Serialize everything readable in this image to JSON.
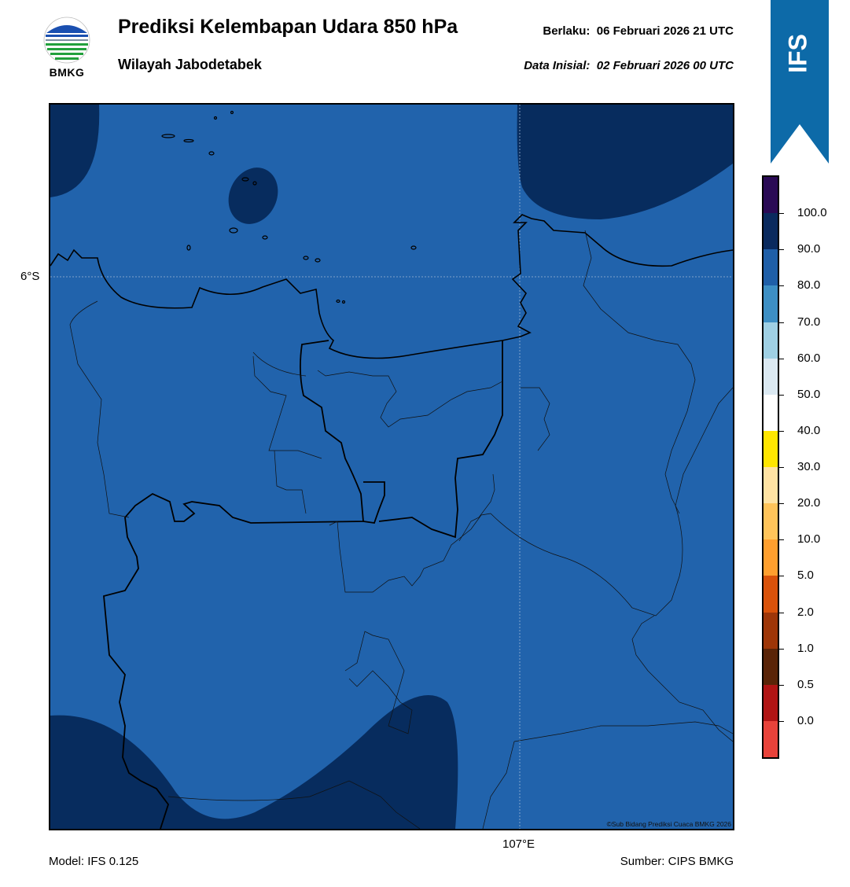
{
  "header": {
    "logo_text": "BMKG",
    "title": "Prediksi Kelembapan Udara 850 hPa",
    "subtitle": "Wilayah Jabodetabek",
    "valid_label": "Berlaku:",
    "valid_time": "06 Februari 2026 21 UTC",
    "init_label": "Data Inisial:",
    "init_time": "02 Februari 2026 00 UTC",
    "model_badge": "IFS"
  },
  "map": {
    "lat_label": "6°S",
    "lon_label": "107°E",
    "credit": "©Sub Bidang Prediksi Cuaca BMKG 2026",
    "fill_class_percent": "80-90",
    "high_humidity_class_percent": "90-100"
  },
  "footer": {
    "model": "Model: IFS 0.125",
    "source": "Sumber: CIPS BMKG"
  },
  "colorbar": {
    "ticks": [
      "0.0",
      "0.5",
      "1.0",
      "2.0",
      "5.0",
      "10.0",
      "20.0",
      "30.0",
      "40.0",
      "50.0",
      "60.0",
      "70.0",
      "80.0",
      "90.0",
      "100.0"
    ],
    "colors_top_to_bottom": [
      "#2a0a55",
      "#0a2a5e",
      "#1f5fa8",
      "#3d8fc4",
      "#9fd0e4",
      "#dbe9f2",
      "#ffffff",
      "#ffe600",
      "#ffe3a3",
      "#ffc45a",
      "#ff9f2e",
      "#d9520a",
      "#9e3608",
      "#5a2408",
      "#b01414",
      "#e8423a"
    ]
  },
  "colors": {
    "map_base": "#2163ac",
    "map_dark": "#072c5e",
    "ribbon": "#0d6aa8"
  }
}
